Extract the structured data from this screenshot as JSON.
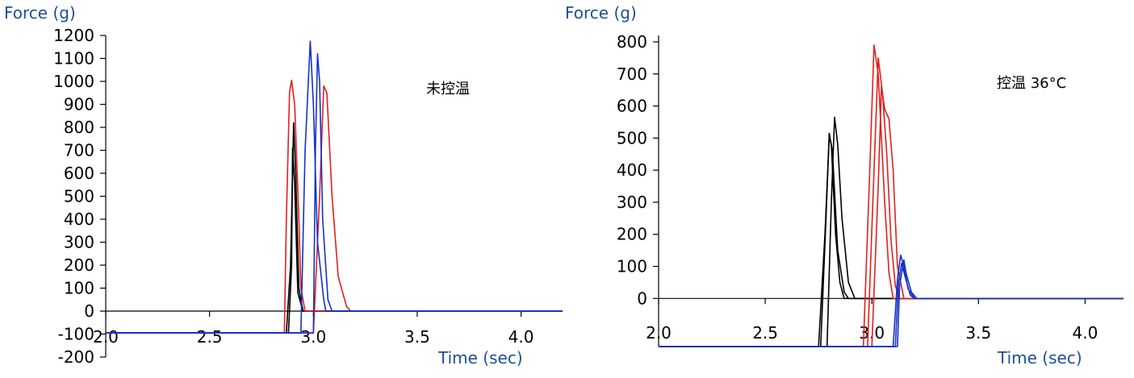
{
  "colors": {
    "axis_title": "#1f4e96",
    "black": "#000000",
    "red": "#e0201c",
    "blue": "#1530c8"
  },
  "chart_data": [
    {
      "type": "line",
      "ylabel": "Force (g)",
      "xlabel": "Time (sec)",
      "annotation": "未控温",
      "xlim": [
        2.0,
        4.2
      ],
      "ylim": [
        -200,
        1200
      ],
      "xticks": [
        2.0,
        2.5,
        3.0,
        3.5,
        4.0
      ],
      "xtick_labels": [
        "2.0",
        "2.5",
        "3.0",
        "3.5",
        "4.0"
      ],
      "yticks": [
        -200,
        -100,
        0,
        100,
        200,
        300,
        400,
        500,
        600,
        700,
        800,
        900,
        1000,
        1100,
        1200
      ],
      "ytick_labels": [
        "-200",
        "-100",
        "0",
        "100",
        "200",
        "300",
        "400",
        "500",
        "600",
        "700",
        "800",
        "900",
        "1000",
        "1100",
        "1200"
      ],
      "baseline_before": -95,
      "series": [
        {
          "color_key": "black",
          "points": [
            [
              2.0,
              -95
            ],
            [
              2.87,
              -95
            ],
            [
              2.89,
              200
            ],
            [
              2.905,
              820
            ],
            [
              2.915,
              600
            ],
            [
              2.93,
              100
            ],
            [
              2.95,
              0
            ],
            [
              4.2,
              0
            ]
          ]
        },
        {
          "color_key": "black",
          "points": [
            [
              2.0,
              -95
            ],
            [
              2.88,
              -95
            ],
            [
              2.895,
              200
            ],
            [
              2.9,
              710
            ],
            [
              2.91,
              550
            ],
            [
              2.925,
              80
            ],
            [
              2.95,
              0
            ],
            [
              4.2,
              0
            ]
          ]
        },
        {
          "color_key": "red",
          "points": [
            [
              2.0,
              -95
            ],
            [
              2.86,
              -95
            ],
            [
              2.87,
              400
            ],
            [
              2.885,
              950
            ],
            [
              2.895,
              1005
            ],
            [
              2.91,
              900
            ],
            [
              2.93,
              400
            ],
            [
              2.94,
              100
            ],
            [
              2.96,
              0
            ],
            [
              4.2,
              0
            ]
          ]
        },
        {
          "color_key": "red",
          "points": [
            [
              2.0,
              -95
            ],
            [
              3.0,
              -95
            ],
            [
              3.03,
              500
            ],
            [
              3.05,
              980
            ],
            [
              3.065,
              950
            ],
            [
              3.09,
              500
            ],
            [
              3.12,
              150
            ],
            [
              3.16,
              20
            ],
            [
              3.18,
              0
            ],
            [
              4.2,
              0
            ]
          ]
        },
        {
          "color_key": "blue",
          "points": [
            [
              2.0,
              -95
            ],
            [
              2.94,
              -95
            ],
            [
              2.96,
              700
            ],
            [
              2.985,
              1175
            ],
            [
              3.0,
              900
            ],
            [
              3.02,
              300
            ],
            [
              3.05,
              50
            ],
            [
              3.06,
              0
            ],
            [
              4.2,
              0
            ]
          ]
        },
        {
          "color_key": "blue",
          "points": [
            [
              2.0,
              -95
            ],
            [
              3.0,
              -95
            ],
            [
              3.01,
              700
            ],
            [
              3.02,
              1120
            ],
            [
              3.03,
              1000
            ],
            [
              3.045,
              400
            ],
            [
              3.07,
              50
            ],
            [
              3.09,
              0
            ],
            [
              4.2,
              0
            ]
          ]
        }
      ]
    },
    {
      "type": "line",
      "ylabel": "Force (g)",
      "xlabel": "Time (sec)",
      "annotation": "控温 36°C",
      "xlim": [
        2.0,
        4.18
      ],
      "ylim": [
        -150,
        820
      ],
      "xticks": [
        2.0,
        2.5,
        3.0,
        3.5,
        4.0
      ],
      "xtick_labels": [
        "2.0",
        "2.5",
        "3.0",
        "3.5",
        "4.0"
      ],
      "yticks": [
        0,
        100,
        200,
        300,
        400,
        500,
        600,
        700,
        800
      ],
      "ytick_labels": [
        "0",
        "100",
        "200",
        "300",
        "400",
        "500",
        "600",
        "700",
        "800"
      ],
      "series": [
        {
          "color_key": "black",
          "points": [
            [
              2.0,
              -150
            ],
            [
              2.75,
              -150
            ],
            [
              2.78,
              200
            ],
            [
              2.8,
              505
            ],
            [
              2.81,
              480
            ],
            [
              2.83,
              200
            ],
            [
              2.85,
              50
            ],
            [
              2.87,
              0
            ],
            [
              4.18,
              0
            ]
          ]
        },
        {
          "color_key": "black",
          "points": [
            [
              2.0,
              -150
            ],
            [
              2.76,
              -150
            ],
            [
              2.785,
              250
            ],
            [
              2.8,
              515
            ],
            [
              2.815,
              460
            ],
            [
              2.84,
              150
            ],
            [
              2.87,
              20
            ],
            [
              2.89,
              0
            ],
            [
              4.18,
              0
            ]
          ]
        },
        {
          "color_key": "black",
          "points": [
            [
              2.0,
              -150
            ],
            [
              2.79,
              -150
            ],
            [
              2.81,
              300
            ],
            [
              2.825,
              565
            ],
            [
              2.84,
              480
            ],
            [
              2.86,
              250
            ],
            [
              2.89,
              50
            ],
            [
              2.92,
              0
            ],
            [
              4.18,
              0
            ]
          ]
        },
        {
          "color_key": "red",
          "points": [
            [
              2.0,
              -150
            ],
            [
              2.96,
              -150
            ],
            [
              2.99,
              400
            ],
            [
              3.01,
              790
            ],
            [
              3.03,
              700
            ],
            [
              3.06,
              300
            ],
            [
              3.08,
              80
            ],
            [
              3.1,
              0
            ],
            [
              4.18,
              0
            ]
          ]
        },
        {
          "color_key": "red",
          "points": [
            [
              2.0,
              -150
            ],
            [
              2.98,
              -150
            ],
            [
              3.01,
              400
            ],
            [
              3.03,
              750
            ],
            [
              3.05,
              640
            ],
            [
              3.07,
              450
            ],
            [
              3.09,
              180
            ],
            [
              3.11,
              40
            ],
            [
              3.13,
              0
            ],
            [
              4.18,
              0
            ]
          ]
        },
        {
          "color_key": "red",
          "points": [
            [
              2.0,
              -150
            ],
            [
              3.0,
              -150
            ],
            [
              3.03,
              350
            ],
            [
              3.045,
              660
            ],
            [
              3.06,
              590
            ],
            [
              3.08,
              560
            ],
            [
              3.1,
              400
            ],
            [
              3.12,
              100
            ],
            [
              3.15,
              0
            ],
            [
              4.18,
              0
            ]
          ]
        },
        {
          "color_key": "blue",
          "points": [
            [
              2.0,
              -150
            ],
            [
              3.1,
              -150
            ],
            [
              3.12,
              60
            ],
            [
              3.135,
              135
            ],
            [
              3.15,
              100
            ],
            [
              3.17,
              30
            ],
            [
              3.2,
              0
            ],
            [
              4.18,
              0
            ]
          ]
        },
        {
          "color_key": "blue",
          "points": [
            [
              2.0,
              -150
            ],
            [
              3.12,
              -150
            ],
            [
              3.13,
              40
            ],
            [
              3.15,
              120
            ],
            [
              3.16,
              80
            ],
            [
              3.185,
              20
            ],
            [
              3.21,
              0
            ],
            [
              4.18,
              0
            ]
          ]
        },
        {
          "color_key": "blue",
          "points": [
            [
              2.0,
              -150
            ],
            [
              3.11,
              -150
            ],
            [
              3.125,
              50
            ],
            [
              3.14,
              110
            ],
            [
              3.155,
              70
            ],
            [
              3.18,
              10
            ],
            [
              3.2,
              0
            ],
            [
              4.18,
              0
            ]
          ]
        }
      ]
    }
  ]
}
